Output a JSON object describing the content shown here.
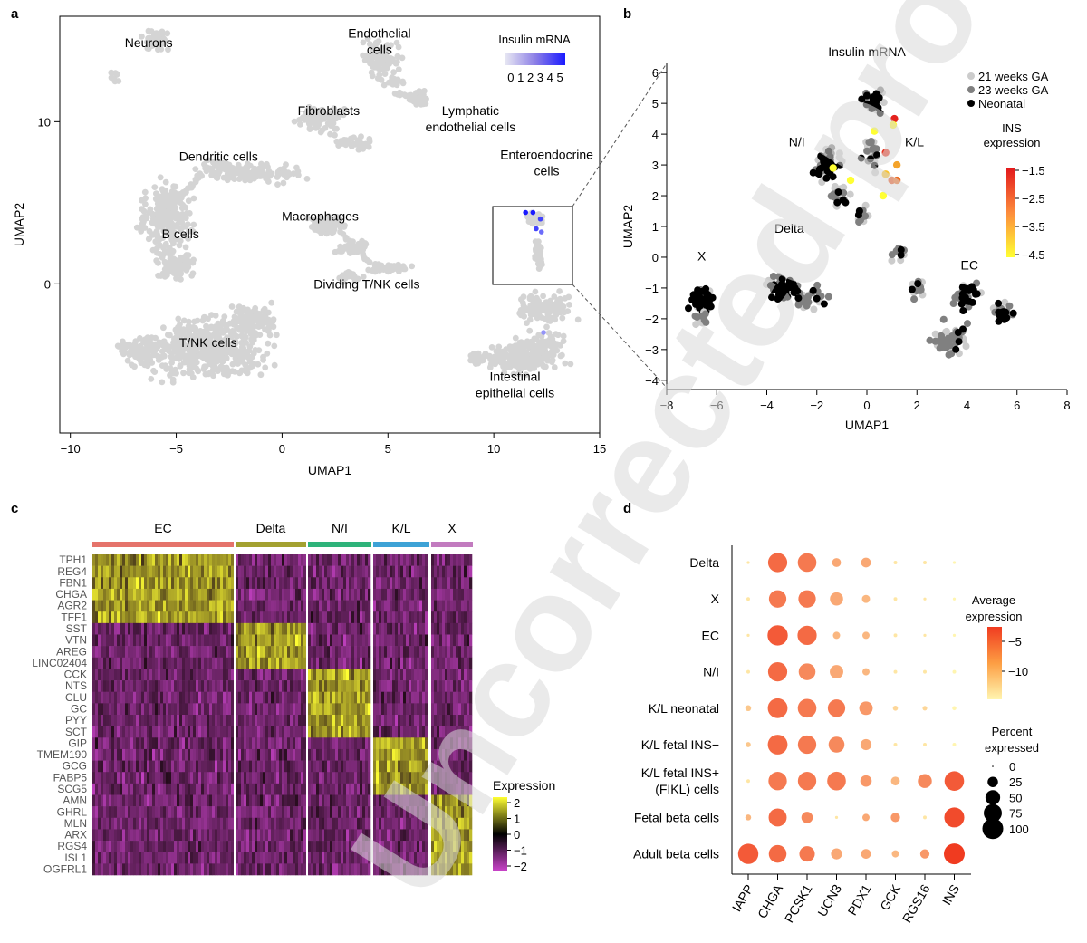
{
  "panels": {
    "a": "a",
    "b": "b",
    "c": "c",
    "d": "d"
  },
  "watermark": "Uncorrected proofs",
  "panel_a": {
    "xlabel": "UMAP1",
    "ylabel": "UMAP2",
    "xticks": [
      -10,
      -5,
      0,
      5,
      10,
      15
    ],
    "yticks": [
      0,
      10
    ],
    "colorbar_title": "Insulin mRNA",
    "colorbar_ticks": "0 1 2 3 4 5",
    "clusters": [
      {
        "label": "Neurons",
        "x": -6.3,
        "y": 14.6
      },
      {
        "label": "Endothelial\ncells",
        "x": 4.6,
        "y": 15.2
      },
      {
        "label": "Fibroblasts",
        "x": 2.2,
        "y": 10.4
      },
      {
        "label": "Lymphatic\nendothelial cells",
        "x": 8.9,
        "y": 10.4
      },
      {
        "label": "Dendritic cells",
        "x": -3.0,
        "y": 7.6
      },
      {
        "label": "Enteroendocrine\ncells",
        "x": 12.5,
        "y": 7.7
      },
      {
        "label": "Macrophages",
        "x": 1.8,
        "y": 3.9
      },
      {
        "label": "B cells",
        "x": -4.8,
        "y": 2.8
      },
      {
        "label": "Dividing T/NK cells",
        "x": 4.0,
        "y": -0.3
      },
      {
        "label": "T/NK cells",
        "x": -3.5,
        "y": -3.9
      },
      {
        "label": "Intestinal\nepithelial cells",
        "x": 11.0,
        "y": -6.0
      }
    ]
  },
  "panel_b": {
    "title": "Insulin mRNA",
    "xlabel": "UMAP1",
    "ylabel": "UMAP2",
    "xticks": [
      -8,
      -6,
      -4,
      -2,
      0,
      2,
      4,
      6,
      8
    ],
    "yticks": [
      -4,
      -3,
      -2,
      -1,
      0,
      1,
      2,
      3,
      4,
      5,
      6
    ],
    "legend": [
      {
        "label": "21 weeks GA",
        "color": "#cccccc"
      },
      {
        "label": "23 weeks GA",
        "color": "#808080"
      },
      {
        "label": "Neonatal",
        "color": "#000000"
      }
    ],
    "colorbar_title": "INS\nexpression",
    "colorbar_ticks": [
      "−1.5",
      "−2.5",
      "−3.5",
      "−4.5"
    ],
    "clusters": [
      {
        "label": "N/I",
        "x": -2.8,
        "y": 3.6
      },
      {
        "label": "K/L",
        "x": 1.9,
        "y": 3.6
      },
      {
        "label": "Delta",
        "x": -3.1,
        "y": 0.8
      },
      {
        "label": "X",
        "x": -6.6,
        "y": -0.1
      },
      {
        "label": "EC",
        "x": 4.1,
        "y": -0.4
      }
    ]
  },
  "chart_data": [
    {
      "type": "scatter",
      "panel": "a",
      "xlabel": "UMAP1",
      "ylabel": "UMAP2",
      "xlim": [
        -10.5,
        15
      ],
      "ylim": [
        -9.2,
        16.5
      ],
      "colorbar": {
        "title": "Insulin mRNA",
        "range": [
          0,
          5
        ]
      },
      "clusters": [
        "Neurons",
        "Endothelial cells",
        "Fibroblasts",
        "Lymphatic endothelial cells",
        "Dendritic cells",
        "Enteroendocrine cells",
        "Macrophages",
        "B cells",
        "Dividing T/NK cells",
        "T/NK cells",
        "Intestinal epithelial cells"
      ],
      "highlighted_points": [
        {
          "x": 11.5,
          "y": 4.4,
          "value": 5
        },
        {
          "x": 11.85,
          "y": 4.4,
          "value": 5
        },
        {
          "x": 12.2,
          "y": 4.0,
          "value": 4
        },
        {
          "x": 12.0,
          "y": 3.4,
          "value": 4
        },
        {
          "x": 12.25,
          "y": 3.2,
          "value": 3
        },
        {
          "x": 12.35,
          "y": -3.0,
          "value": 2
        }
      ]
    },
    {
      "type": "scatter",
      "panel": "b",
      "title": "Insulin mRNA",
      "xlabel": "UMAP1",
      "ylabel": "UMAP2",
      "xlim": [
        -8,
        8
      ],
      "ylim": [
        -4.3,
        6.3
      ],
      "series": [
        {
          "name": "21 weeks GA"
        },
        {
          "name": "23 weeks GA"
        },
        {
          "name": "Neonatal"
        }
      ],
      "colorbar": {
        "title": "INS expression",
        "range": [
          -4.5,
          -1.5
        ]
      },
      "ins_points": [
        {
          "x": 1.1,
          "y": 4.5,
          "value": -1.6
        },
        {
          "x": 0.75,
          "y": 3.4,
          "value": -1.8
        },
        {
          "x": 1.0,
          "y": 2.5,
          "value": -2.3
        },
        {
          "x": 1.2,
          "y": 2.5,
          "value": -2.6
        },
        {
          "x": 1.2,
          "y": 3.0,
          "value": -3.3
        },
        {
          "x": 0.75,
          "y": 2.7,
          "value": -3.7
        },
        {
          "x": 1.05,
          "y": 4.3,
          "value": -4.4
        },
        {
          "x": 0.3,
          "y": 4.1,
          "value": -4.5
        },
        {
          "x": -1.35,
          "y": 2.9,
          "value": -4.5
        },
        {
          "x": -0.65,
          "y": 2.5,
          "value": -4.5
        },
        {
          "x": 0.65,
          "y": 2.0,
          "value": -4.5
        }
      ]
    },
    {
      "type": "heatmap",
      "panel": "c",
      "column_groups": [
        {
          "name": "EC",
          "color": "#e5736b"
        },
        {
          "name": "Delta",
          "color": "#a3a130"
        },
        {
          "name": "N/I",
          "color": "#2eb37a"
        },
        {
          "name": "K/L",
          "color": "#3da2d6"
        },
        {
          "name": "X",
          "color": "#c27bbf"
        }
      ],
      "genes": [
        "TPH1",
        "REG4",
        "FBN1",
        "CHGA",
        "AGR2",
        "TFF1",
        "SST",
        "VTN",
        "AREG",
        "LINC02404",
        "CCK",
        "NTS",
        "CLU",
        "GC",
        "PYY",
        "SCT",
        "GIP",
        "TMEM190",
        "GCG",
        "FABP5",
        "SCG5",
        "AMN",
        "GHRL",
        "MLN",
        "ARX",
        "RGS4",
        "ISL1",
        "OGFRL1"
      ],
      "high_group_per_gene": [
        "EC",
        "EC",
        "EC",
        "EC",
        "EC",
        "EC",
        "Delta",
        "Delta",
        "Delta",
        "Delta",
        "N/I",
        "N/I",
        "N/I",
        "N/I",
        "N/I",
        "N/I",
        "K/L",
        "K/L",
        "K/L",
        "K/L",
        "K/L",
        "X",
        "X",
        "X",
        "X",
        "X",
        "X",
        "X"
      ],
      "colorbar": {
        "title": "Expression",
        "ticks": [
          "2",
          "1",
          "0",
          "−1",
          "−2"
        ],
        "range": [
          -2,
          2
        ]
      }
    },
    {
      "type": "scatter",
      "panel": "d",
      "subtype": "dot plot",
      "genes": [
        "IAPP",
        "CHGA",
        "PCSK1",
        "UCN3",
        "PDX1",
        "GCK",
        "RGS16",
        "INS"
      ],
      "groups": [
        "Delta",
        "X",
        "EC",
        "N/I",
        "K/L neonatal",
        "K/L fetal INS−",
        "K/L fetal INS+\n(FIKL) cells",
        "Fetal beta cells",
        "Adult beta cells"
      ],
      "percent_expressed": [
        [
          2,
          85,
          80,
          18,
          22,
          3,
          3,
          2
        ],
        [
          3,
          70,
          70,
          40,
          15,
          3,
          2,
          2
        ],
        [
          2,
          95,
          85,
          12,
          12,
          3,
          2,
          2
        ],
        [
          3,
          85,
          65,
          42,
          12,
          3,
          3,
          3
        ],
        [
          8,
          90,
          80,
          70,
          42,
          6,
          5,
          4
        ],
        [
          6,
          90,
          78,
          58,
          28,
          3,
          3,
          3
        ],
        [
          3,
          78,
          78,
          80,
          30,
          18,
          45,
          88
        ],
        [
          8,
          75,
          30,
          2,
          12,
          20,
          3,
          92
        ],
        [
          95,
          72,
          55,
          28,
          22,
          12,
          20,
          100
        ]
      ],
      "average_expression": [
        [
          -13,
          -5,
          -6,
          -9,
          -9,
          -13,
          -13,
          -14
        ],
        [
          -13,
          -6,
          -6,
          -9,
          -10,
          -13,
          -13,
          -14
        ],
        [
          -13,
          -4,
          -5,
          -10,
          -10,
          -13,
          -13,
          -14
        ],
        [
          -13,
          -5,
          -7,
          -9,
          -10,
          -13,
          -13,
          -14
        ],
        [
          -11,
          -5,
          -6,
          -6,
          -8,
          -12,
          -12,
          -14
        ],
        [
          -11,
          -5,
          -6,
          -7,
          -9,
          -13,
          -13,
          -14
        ],
        [
          -13,
          -6,
          -6,
          -6,
          -8,
          -10,
          -7,
          -4
        ],
        [
          -10,
          -5,
          -7,
          -13,
          -9,
          -8,
          -13,
          -3
        ],
        [
          -4,
          -5,
          -6,
          -9,
          -9,
          -10,
          -8,
          -2
        ]
      ],
      "colorbar": {
        "title": "Average\nexpression",
        "ticks": [
          "−5",
          "−10"
        ]
      },
      "size_legend": {
        "title": "Percent\nexpressed",
        "values": [
          0,
          25,
          50,
          75,
          100
        ]
      }
    }
  ]
}
